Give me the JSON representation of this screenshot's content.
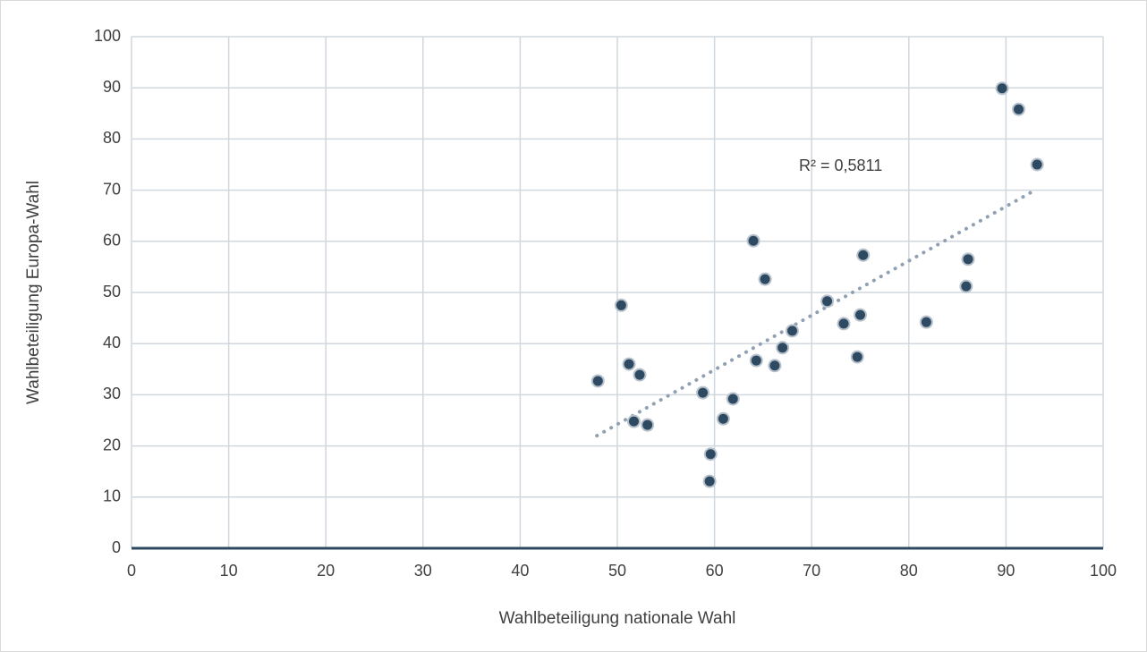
{
  "chart_data": {
    "type": "scatter",
    "xlabel": "Wahlbeteiligung nationale Wahl",
    "ylabel": "Wahlbeteiligung Europa-Wahl",
    "annotation": "R² = 0,5811",
    "color": "#2e4a62",
    "grid": true,
    "xlim": [
      0,
      100
    ],
    "ylim": [
      0,
      100
    ],
    "xticks": [
      0,
      10,
      20,
      30,
      40,
      50,
      60,
      70,
      80,
      90,
      100
    ],
    "yticks": [
      0,
      10,
      20,
      30,
      40,
      50,
      60,
      70,
      80,
      90,
      100
    ],
    "x": [
      48.0,
      50.4,
      51.2,
      51.7,
      52.3,
      53.1,
      58.8,
      59.6,
      59.5,
      60.9,
      61.9,
      64.0,
      64.3,
      65.2,
      66.2,
      67.0,
      68.0,
      71.6,
      73.3,
      74.7,
      75.0,
      75.3,
      81.8,
      85.9,
      86.1,
      89.6,
      91.3,
      93.2
    ],
    "values": [
      32.7,
      47.5,
      36.0,
      24.8,
      33.9,
      24.1,
      30.4,
      18.4,
      13.1,
      25.3,
      29.2,
      60.1,
      36.7,
      52.6,
      35.7,
      39.2,
      42.5,
      48.3,
      43.9,
      37.4,
      45.6,
      57.3,
      44.2,
      51.2,
      56.5,
      89.9,
      85.8,
      75.0
    ],
    "trendline": {
      "color": "#8fa0b3",
      "x": [
        47.9,
        92.8
      ],
      "values": [
        22.0,
        69.8
      ]
    }
  }
}
